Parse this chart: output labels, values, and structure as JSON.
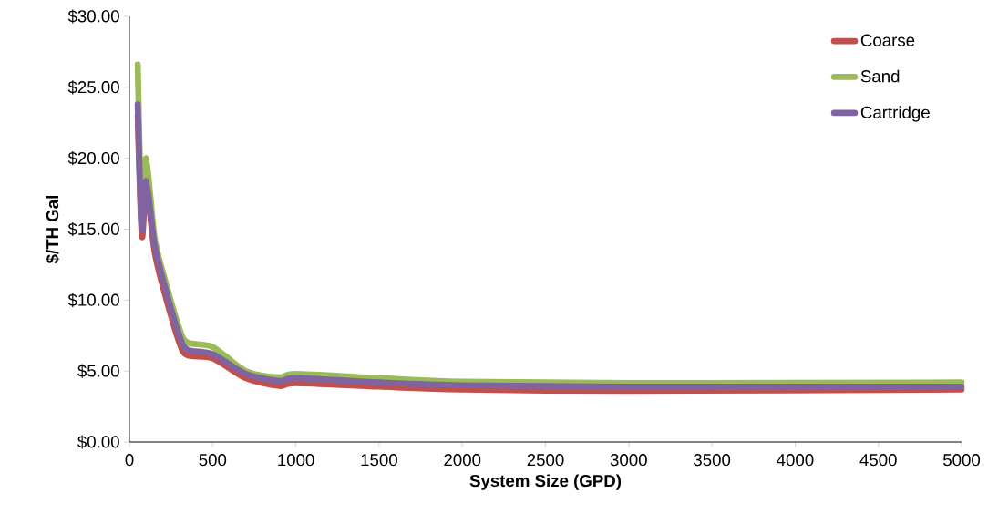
{
  "chart_data": {
    "type": "line",
    "xlabel": "System Size (GPD)",
    "ylabel": "$/TH Gal",
    "xlim": [
      0,
      5000
    ],
    "xticks": [
      0,
      500,
      1000,
      1500,
      2000,
      2500,
      3000,
      3500,
      4000,
      4500,
      5000
    ],
    "ylim": [
      0,
      30
    ],
    "yticks": [
      {
        "value": 0,
        "label": "$0.00"
      },
      {
        "value": 5,
        "label": "$5.00"
      },
      {
        "value": 10,
        "label": "$10.00"
      },
      {
        "value": 15,
        "label": "$15.00"
      },
      {
        "value": 20,
        "label": "$20.00"
      },
      {
        "value": 25,
        "label": "$25.00"
      },
      {
        "value": 30,
        "label": "$30.00"
      }
    ],
    "x": [
      50,
      75,
      100,
      150,
      200,
      300,
      350,
      500,
      700,
      900,
      1000,
      1500,
      2000,
      3000,
      5000
    ],
    "grid": false,
    "legend": "top right",
    "marker": "none",
    "line_style": "solid",
    "series": [
      {
        "name": "Coarse",
        "color": "#c0504d",
        "values": [
          23.0,
          14.5,
          18.0,
          13.5,
          11.0,
          7.0,
          6.1,
          5.9,
          4.5,
          3.95,
          4.15,
          3.9,
          3.7,
          3.6,
          3.7
        ]
      },
      {
        "name": "Sand",
        "color": "#9bbb59",
        "values": [
          26.6,
          15.5,
          20.0,
          14.5,
          12.0,
          8.0,
          7.0,
          6.7,
          5.0,
          4.55,
          4.8,
          4.5,
          4.25,
          4.15,
          4.2
        ]
      },
      {
        "name": "Cartridge",
        "color": "#8064a2",
        "values": [
          23.8,
          15.0,
          18.4,
          14.0,
          11.5,
          7.5,
          6.5,
          6.2,
          4.8,
          4.3,
          4.5,
          4.2,
          4.0,
          3.9,
          3.9
        ]
      }
    ]
  }
}
